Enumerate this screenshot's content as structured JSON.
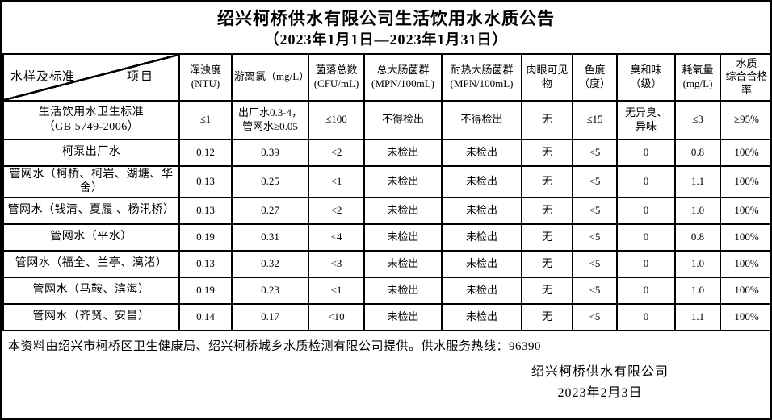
{
  "title": "绍兴柯桥供水有限公司生活饮用水水质公告",
  "subtitle": "（2023年1月1日—2023年1月31日）",
  "table": {
    "corner": {
      "top": "项目",
      "bottom": "水样及标准"
    },
    "columns": [
      "浑浊度\n(NTU)",
      "游离氯（mg/L）",
      "菌落总数\n(CFU/mL)",
      "总大肠菌群\n(MPN/100mL)",
      "耐热大肠菌群\n(MPN/100mL)",
      "肉眼可见物",
      "色度\n（度）",
      "臭和味\n（级）",
      "耗氧量\n(mg/L)",
      "水质\n综合合格率"
    ],
    "rows": [
      {
        "label": "生活饮用水卫生标准\n（GB 5749-2006）",
        "values": [
          "≤1",
          "出厂水0.3-4，\n管网水≥0.05",
          "≤100",
          "不得检出",
          "不得检出",
          "无",
          "≤15",
          "无异臭、\n异味",
          "≤3",
          "≥95%"
        ]
      },
      {
        "label": "柯泵出厂水",
        "values": [
          "0.12",
          "0.39",
          "<2",
          "未检出",
          "未检出",
          "无",
          "<5",
          "0",
          "0.8",
          "100%"
        ]
      },
      {
        "label": "管网水（柯桥、柯岩、湖塘、华舍）",
        "values": [
          "0.13",
          "0.25",
          "<1",
          "未检出",
          "未检出",
          "无",
          "<5",
          "0",
          "1.1",
          "100%"
        ]
      },
      {
        "label": "管网水（钱清、夏履 、杨汛桥）",
        "values": [
          "0.13",
          "0.27",
          "<2",
          "未检出",
          "未检出",
          "无",
          "<5",
          "0",
          "1.0",
          "100%"
        ]
      },
      {
        "label": "管网水（平水）",
        "values": [
          "0.19",
          "0.31",
          "<4",
          "未检出",
          "未检出",
          "无",
          "<5",
          "0",
          "0.8",
          "100%"
        ]
      },
      {
        "label": "管网水（福全、兰亭、漓渚）",
        "values": [
          "0.13",
          "0.32",
          "<3",
          "未检出",
          "未检出",
          "无",
          "<5",
          "0",
          "1.0",
          "100%"
        ]
      },
      {
        "label": "管网水（马鞍、滨海）",
        "values": [
          "0.19",
          "0.23",
          "<1",
          "未检出",
          "未检出",
          "无",
          "<5",
          "0",
          "1.0",
          "100%"
        ]
      },
      {
        "label": "管网水（齐贤、安昌）",
        "values": [
          "0.14",
          "0.17",
          "<10",
          "未检出",
          "未检出",
          "无",
          "<5",
          "0",
          "1.1",
          "100%"
        ]
      }
    ]
  },
  "footer": {
    "note": "本资料由绍兴市柯桥区卫生健康局、绍兴柯桥城乡水质检测有限公司提供。供水服务热线：96390",
    "company": "绍兴柯桥供水有限公司",
    "date": "2023年2月3日"
  }
}
